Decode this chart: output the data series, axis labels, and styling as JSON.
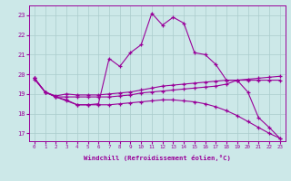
{
  "background_color": "#cce8e8",
  "grid_color": "#aacccc",
  "line_color": "#990099",
  "xlabel": "Windchill (Refroidissement éolien,°C)",
  "ylabel_ticks": [
    17,
    18,
    19,
    20,
    21,
    22,
    23
  ],
  "xlim": [
    -0.5,
    23.5
  ],
  "ylim": [
    16.6,
    23.5
  ],
  "xticks": [
    0,
    1,
    2,
    3,
    4,
    5,
    6,
    7,
    8,
    9,
    10,
    11,
    12,
    13,
    14,
    15,
    16,
    17,
    18,
    19,
    20,
    21,
    22,
    23
  ],
  "series": [
    {
      "x": [
        0,
        1,
        2,
        3,
        4,
        5,
        6,
        7,
        8,
        9,
        10,
        11,
        12,
        13,
        14,
        15,
        16,
        17,
        18,
        19,
        20,
        21,
        22,
        23
      ],
      "y": [
        19.8,
        19.1,
        18.85,
        18.65,
        18.45,
        18.45,
        18.5,
        20.8,
        20.4,
        21.1,
        21.5,
        23.1,
        22.5,
        22.9,
        22.6,
        21.1,
        21.0,
        20.5,
        19.7,
        19.7,
        19.1,
        17.8,
        17.3,
        16.75
      ]
    },
    {
      "x": [
        0,
        1,
        2,
        3,
        4,
        5,
        6,
        7,
        8,
        9,
        10,
        11,
        12,
        13,
        14,
        15,
        16,
        17,
        18,
        19,
        20,
        21,
        22,
        23
      ],
      "y": [
        19.8,
        19.1,
        18.9,
        19.0,
        18.95,
        18.95,
        18.95,
        19.0,
        19.05,
        19.1,
        19.2,
        19.3,
        19.4,
        19.45,
        19.5,
        19.55,
        19.6,
        19.65,
        19.7,
        19.7,
        19.7,
        19.7,
        19.7,
        19.7
      ]
    },
    {
      "x": [
        0,
        1,
        2,
        3,
        4,
        5,
        6,
        7,
        8,
        9,
        10,
        11,
        12,
        13,
        14,
        15,
        16,
        17,
        18,
        19.0,
        20,
        21,
        22,
        23
      ],
      "y": [
        19.75,
        19.1,
        18.85,
        18.85,
        18.85,
        18.85,
        18.85,
        18.85,
        18.9,
        18.95,
        19.05,
        19.1,
        19.15,
        19.2,
        19.25,
        19.3,
        19.35,
        19.4,
        19.5,
        19.7,
        19.75,
        19.8,
        19.85,
        19.9
      ]
    },
    {
      "x": [
        0,
        1,
        2,
        3,
        4,
        5,
        6,
        7,
        8,
        9,
        10,
        11,
        12,
        13,
        14,
        15,
        16,
        17,
        18,
        19,
        20,
        21,
        22,
        23
      ],
      "y": [
        19.8,
        19.1,
        18.85,
        18.7,
        18.45,
        18.45,
        18.45,
        18.45,
        18.5,
        18.55,
        18.6,
        18.65,
        18.7,
        18.7,
        18.65,
        18.6,
        18.5,
        18.35,
        18.15,
        17.9,
        17.6,
        17.3,
        17.0,
        16.75
      ]
    }
  ]
}
